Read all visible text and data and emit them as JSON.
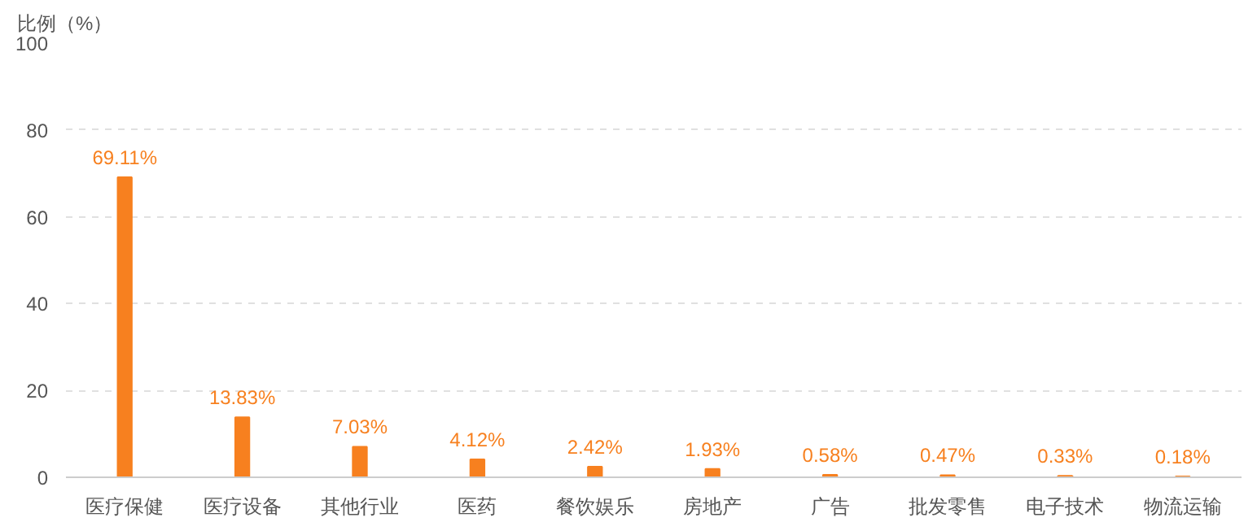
{
  "chart_data": {
    "type": "bar",
    "ylabel": "比例（%）",
    "categories": [
      "医疗保健",
      "医疗设备",
      "其他行业",
      "医药",
      "餐饮娱乐",
      "房地产",
      "广告",
      "批发零售",
      "电子技术",
      "物流运输"
    ],
    "values": [
      69.11,
      13.83,
      7.03,
      4.12,
      2.42,
      1.93,
      0.58,
      0.47,
      0.33,
      0.18
    ],
    "value_labels": [
      "69.11%",
      "13.83%",
      "7.03%",
      "4.12%",
      "2.42%",
      "1.93%",
      "0.58%",
      "0.47%",
      "0.33%",
      "0.18%"
    ],
    "color": "#f7801f",
    "ylim": [
      0,
      100
    ],
    "yticks": [
      0,
      20,
      40,
      60,
      80,
      100
    ],
    "grid": "y"
  }
}
